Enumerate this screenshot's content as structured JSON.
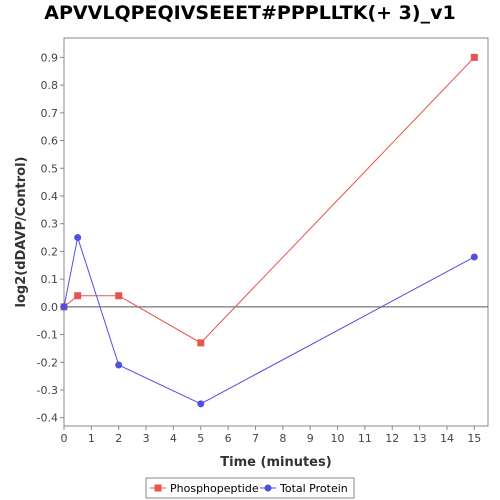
{
  "chart_data": {
    "type": "line",
    "title": "APVVLQPEQIVSEEET#PPPLLTK(+ 3)_v1",
    "xlabel": "Time (minutes)",
    "ylabel": "log2(dDAVP/Control)",
    "xlim": [
      0,
      15.5
    ],
    "ylim": [
      -0.43,
      0.97
    ],
    "x_ticks": [
      0,
      1,
      2,
      3,
      4,
      5,
      6,
      7,
      8,
      9,
      10,
      11,
      12,
      13,
      14,
      15
    ],
    "y_ticks": [
      -0.4,
      -0.3,
      -0.2,
      -0.1,
      0.0,
      0.1,
      0.2,
      0.3,
      0.4,
      0.5,
      0.6,
      0.7,
      0.8,
      0.9
    ],
    "y_tick_labels": [
      "-0.4",
      "-0.3",
      "-0.2",
      "-0.1",
      "0.0",
      "0.1",
      "0.2",
      "0.3",
      "0.4",
      "0.5",
      "0.6",
      "0.7",
      "0.8",
      "0.9"
    ],
    "grid": false,
    "zero_line": true,
    "legend_position": "bottom",
    "series": [
      {
        "name": "Phosphopeptide",
        "color": "#e8534f",
        "marker": "square",
        "x": [
          0,
          0.5,
          2,
          5,
          15
        ],
        "y": [
          0.0,
          0.04,
          0.04,
          -0.13,
          0.9
        ]
      },
      {
        "name": "Total Protein",
        "color": "#5050e0",
        "marker": "circle",
        "x": [
          0,
          0.5,
          2,
          5,
          15
        ],
        "y": [
          0.0,
          0.25,
          -0.21,
          -0.35,
          0.18
        ]
      }
    ]
  }
}
